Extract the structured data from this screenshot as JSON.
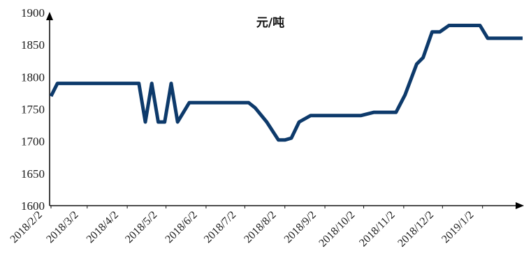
{
  "chart_data": {
    "type": "line",
    "title": "元/吨",
    "xlabel": "",
    "ylabel": "",
    "ylim": [
      1600,
      1900
    ],
    "y_ticks": [
      1600,
      1650,
      1700,
      1750,
      1800,
      1850,
      1900
    ],
    "x_range": [
      "2018-02-02",
      "2019-02-02"
    ],
    "x_ticks": [
      {
        "date": "2018-02-02",
        "label": "2018/2/2"
      },
      {
        "date": "2018-03-02",
        "label": "2018/3/2"
      },
      {
        "date": "2018-04-02",
        "label": "2018/4/2"
      },
      {
        "date": "2018-05-02",
        "label": "2018/5/2"
      },
      {
        "date": "2018-06-02",
        "label": "2018/6/2"
      },
      {
        "date": "2018-07-02",
        "label": "2018/7/2"
      },
      {
        "date": "2018-08-02",
        "label": "2018/8/2"
      },
      {
        "date": "2018-09-02",
        "label": "2018/9/2"
      },
      {
        "date": "2018-10-02",
        "label": "2018/10/2"
      },
      {
        "date": "2018-11-02",
        "label": "2018/11/2"
      },
      {
        "date": "2018-12-02",
        "label": "2018/12/2"
      },
      {
        "date": "2019-01-02",
        "label": "2019/1/2"
      }
    ],
    "grid": false,
    "legend": "none",
    "series": [
      {
        "color": "#0d3a6b",
        "points": [
          {
            "x": "2018-02-02",
            "y": 1770
          },
          {
            "x": "2018-02-07",
            "y": 1790
          },
          {
            "x": "2018-04-11",
            "y": 1790
          },
          {
            "x": "2018-04-16",
            "y": 1730
          },
          {
            "x": "2018-04-21",
            "y": 1790
          },
          {
            "x": "2018-04-26",
            "y": 1730
          },
          {
            "x": "2018-05-01",
            "y": 1730
          },
          {
            "x": "2018-05-06",
            "y": 1790
          },
          {
            "x": "2018-05-11",
            "y": 1730
          },
          {
            "x": "2018-05-20",
            "y": 1760
          },
          {
            "x": "2018-07-05",
            "y": 1760
          },
          {
            "x": "2018-07-10",
            "y": 1752
          },
          {
            "x": "2018-07-19",
            "y": 1730
          },
          {
            "x": "2018-07-28",
            "y": 1702
          },
          {
            "x": "2018-08-02",
            "y": 1702
          },
          {
            "x": "2018-08-07",
            "y": 1705
          },
          {
            "x": "2018-08-13",
            "y": 1730
          },
          {
            "x": "2018-08-22",
            "y": 1740
          },
          {
            "x": "2018-09-30",
            "y": 1740
          },
          {
            "x": "2018-10-10",
            "y": 1745
          },
          {
            "x": "2018-10-27",
            "y": 1745
          },
          {
            "x": "2018-11-03",
            "y": 1772
          },
          {
            "x": "2018-11-12",
            "y": 1820
          },
          {
            "x": "2018-11-17",
            "y": 1830
          },
          {
            "x": "2018-11-24",
            "y": 1870
          },
          {
            "x": "2018-11-30",
            "y": 1870
          },
          {
            "x": "2018-12-07",
            "y": 1880
          },
          {
            "x": "2018-12-31",
            "y": 1880
          },
          {
            "x": "2019-01-06",
            "y": 1860
          },
          {
            "x": "2019-02-02",
            "y": 1860
          }
        ]
      }
    ]
  }
}
